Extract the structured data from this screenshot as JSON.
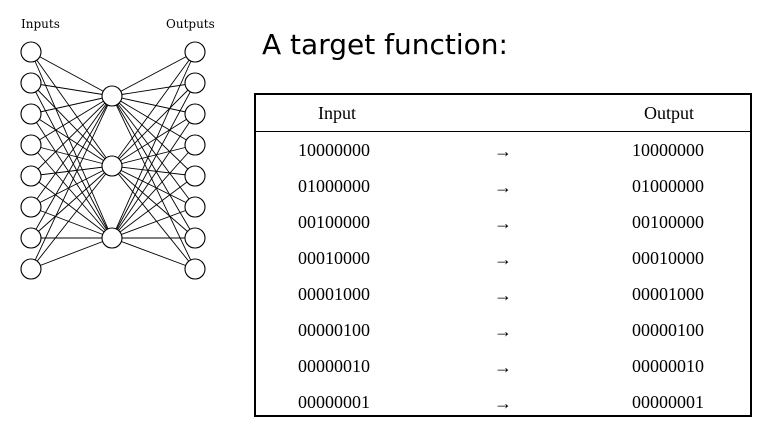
{
  "diagram": {
    "inputs_label": "Inputs",
    "outputs_label": "Outputs",
    "input_count": 8,
    "hidden_count": 3,
    "output_count": 8
  },
  "heading": "A target function:",
  "table": {
    "columns": [
      "Input",
      "",
      "Output"
    ],
    "rows": [
      {
        "input": "10000000",
        "arrow": "→",
        "output": "10000000"
      },
      {
        "input": "01000000",
        "arrow": "→",
        "output": "01000000"
      },
      {
        "input": "00100000",
        "arrow": "→",
        "output": "00100000"
      },
      {
        "input": "00010000",
        "arrow": "→",
        "output": "00010000"
      },
      {
        "input": "00001000",
        "arrow": "→",
        "output": "00001000"
      },
      {
        "input": "00000100",
        "arrow": "→",
        "output": "00000100"
      },
      {
        "input": "00000010",
        "arrow": "→",
        "output": "00000010"
      },
      {
        "input": "00000001",
        "arrow": "→",
        "output": "00000001"
      }
    ]
  }
}
